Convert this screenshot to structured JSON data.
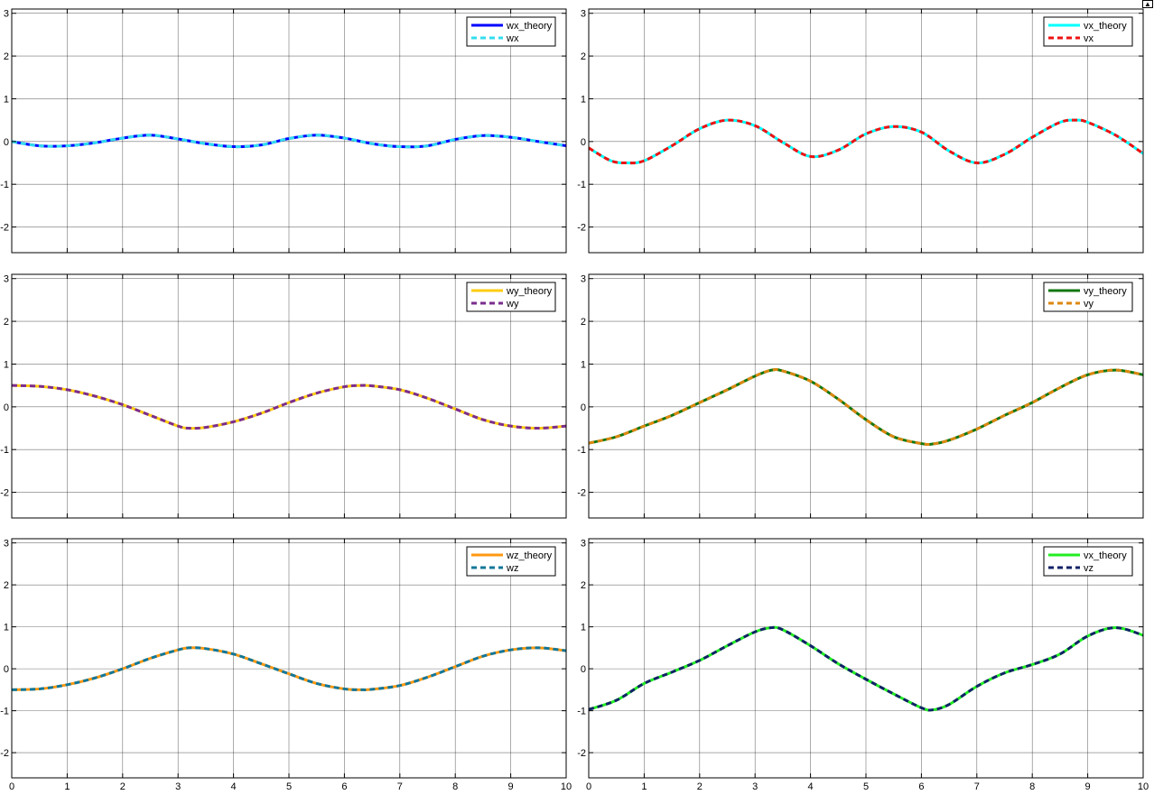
{
  "toolbar": {
    "undock_icon": "undock-icon"
  },
  "chart_data": [
    {
      "type": "line",
      "xlim": [
        0,
        10
      ],
      "ylim": [
        -2.6,
        3.1
      ],
      "xticks": [
        0,
        1,
        2,
        3,
        4,
        5,
        6,
        7,
        8,
        9,
        10
      ],
      "yticks": [
        -2,
        -1,
        0,
        1,
        2,
        3
      ],
      "x_tick_labels_shown": false,
      "grid": true,
      "legend_position": "top-right",
      "series": [
        {
          "name": "wx_theory",
          "color": "#0000ff",
          "style": "solid",
          "x": [
            0,
            0.5,
            1,
            1.5,
            2,
            2.5,
            3,
            3.5,
            4,
            4.5,
            5,
            5.5,
            6,
            6.5,
            7,
            7.5,
            8,
            8.5,
            9,
            9.5,
            10
          ],
          "y": [
            0,
            -0.1,
            -0.1,
            -0.03,
            0.08,
            0.15,
            0.06,
            -0.05,
            -0.12,
            -0.08,
            0.07,
            0.15,
            0.08,
            -0.05,
            -0.12,
            -0.1,
            0.05,
            0.14,
            0.1,
            0,
            -0.1
          ]
        },
        {
          "name": "wx",
          "color": "#33ddee",
          "style": "dashed",
          "x": [
            0,
            0.5,
            1,
            1.5,
            2,
            2.5,
            3,
            3.5,
            4,
            4.5,
            5,
            5.5,
            6,
            6.5,
            7,
            7.5,
            8,
            8.5,
            9,
            9.5,
            10
          ],
          "y": [
            0,
            -0.1,
            -0.1,
            -0.03,
            0.08,
            0.15,
            0.06,
            -0.05,
            -0.12,
            -0.08,
            0.07,
            0.15,
            0.08,
            -0.05,
            -0.12,
            -0.1,
            0.05,
            0.14,
            0.1,
            0,
            -0.1
          ]
        }
      ]
    },
    {
      "type": "line",
      "xlim": [
        0,
        10
      ],
      "ylim": [
        -2.6,
        3.1
      ],
      "xticks": [
        0,
        1,
        2,
        3,
        4,
        5,
        6,
        7,
        8,
        9,
        10
      ],
      "yticks": [
        -2,
        -1,
        0,
        1,
        2,
        3
      ],
      "x_tick_labels_shown": false,
      "grid": true,
      "legend_position": "top-right",
      "series": [
        {
          "name": "vx_theory",
          "color": "#00ffff",
          "style": "solid",
          "x": [
            0,
            0.4,
            0.7,
            1,
            1.5,
            2,
            2.5,
            3,
            3.5,
            4,
            4.5,
            5,
            5.5,
            6,
            6.5,
            7,
            7.5,
            8,
            8.5,
            8.8,
            9,
            9.5,
            10
          ],
          "y": [
            -0.15,
            -0.45,
            -0.5,
            -0.45,
            -0.1,
            0.3,
            0.5,
            0.37,
            -0.02,
            -0.35,
            -0.2,
            0.18,
            0.35,
            0.22,
            -0.22,
            -0.5,
            -0.3,
            0.1,
            0.45,
            0.5,
            0.45,
            0.15,
            -0.28
          ]
        },
        {
          "name": "vx",
          "color": "#ee1111",
          "style": "dashed",
          "x": [
            0,
            0.4,
            0.7,
            1,
            1.5,
            2,
            2.5,
            3,
            3.5,
            4,
            4.5,
            5,
            5.5,
            6,
            6.5,
            7,
            7.5,
            8,
            8.5,
            8.8,
            9,
            9.5,
            10
          ],
          "y": [
            -0.15,
            -0.45,
            -0.5,
            -0.45,
            -0.1,
            0.3,
            0.5,
            0.37,
            -0.02,
            -0.35,
            -0.2,
            0.18,
            0.35,
            0.22,
            -0.22,
            -0.5,
            -0.3,
            0.1,
            0.45,
            0.5,
            0.45,
            0.15,
            -0.28
          ]
        }
      ]
    },
    {
      "type": "line",
      "xlim": [
        0,
        10
      ],
      "ylim": [
        -2.6,
        3.1
      ],
      "xticks": [
        0,
        1,
        2,
        3,
        4,
        5,
        6,
        7,
        8,
        9,
        10
      ],
      "yticks": [
        -2,
        -1,
        0,
        1,
        2,
        3
      ],
      "x_tick_labels_shown": false,
      "grid": true,
      "legend_position": "top-right",
      "series": [
        {
          "name": "wy_theory",
          "color": "#ffcc11",
          "style": "solid",
          "x": [
            0,
            0.5,
            1,
            1.5,
            2,
            2.5,
            3,
            3.2,
            3.5,
            4,
            4.5,
            5,
            5.5,
            6,
            6.3,
            6.5,
            7,
            7.5,
            8,
            8.5,
            9,
            9.5,
            10
          ],
          "y": [
            0.5,
            0.48,
            0.4,
            0.25,
            0.05,
            -0.2,
            -0.45,
            -0.5,
            -0.48,
            -0.35,
            -0.15,
            0.1,
            0.32,
            0.47,
            0.5,
            0.49,
            0.4,
            0.2,
            -0.05,
            -0.3,
            -0.45,
            -0.5,
            -0.45
          ]
        },
        {
          "name": "wy",
          "color": "#7b2d8e",
          "style": "dashed",
          "x": [
            0,
            0.5,
            1,
            1.5,
            2,
            2.5,
            3,
            3.2,
            3.5,
            4,
            4.5,
            5,
            5.5,
            6,
            6.3,
            6.5,
            7,
            7.5,
            8,
            8.5,
            9,
            9.5,
            10
          ],
          "y": [
            0.5,
            0.48,
            0.4,
            0.25,
            0.05,
            -0.2,
            -0.45,
            -0.5,
            -0.48,
            -0.35,
            -0.15,
            0.1,
            0.32,
            0.47,
            0.5,
            0.49,
            0.4,
            0.2,
            -0.05,
            -0.3,
            -0.45,
            -0.5,
            -0.45
          ]
        }
      ]
    },
    {
      "type": "line",
      "xlim": [
        0,
        10
      ],
      "ylim": [
        -2.6,
        3.1
      ],
      "xticks": [
        0,
        1,
        2,
        3,
        4,
        5,
        6,
        7,
        8,
        9,
        10
      ],
      "yticks": [
        -2,
        -1,
        0,
        1,
        2,
        3
      ],
      "x_tick_labels_shown": false,
      "grid": true,
      "legend_position": "top-right",
      "series": [
        {
          "name": "vy_theory",
          "color": "#117711",
          "style": "solid",
          "x": [
            0,
            0.5,
            1,
            1.5,
            2,
            2.5,
            3,
            3.3,
            3.5,
            4,
            4.5,
            5,
            5.5,
            6,
            6.2,
            6.5,
            7,
            7.5,
            8,
            8.5,
            9,
            9.5,
            10
          ],
          "y": [
            -0.85,
            -0.7,
            -0.45,
            -0.2,
            0.1,
            0.4,
            0.72,
            0.86,
            0.84,
            0.6,
            0.18,
            -0.3,
            -0.7,
            -0.86,
            -0.87,
            -0.78,
            -0.52,
            -0.2,
            0.1,
            0.45,
            0.75,
            0.86,
            0.75
          ]
        },
        {
          "name": "vy",
          "color": "#dd8811",
          "style": "dashed",
          "x": [
            0,
            0.5,
            1,
            1.5,
            2,
            2.5,
            3,
            3.3,
            3.5,
            4,
            4.5,
            5,
            5.5,
            6,
            6.2,
            6.5,
            7,
            7.5,
            8,
            8.5,
            9,
            9.5,
            10
          ],
          "y": [
            -0.85,
            -0.7,
            -0.45,
            -0.2,
            0.1,
            0.4,
            0.72,
            0.86,
            0.84,
            0.6,
            0.18,
            -0.3,
            -0.7,
            -0.86,
            -0.87,
            -0.78,
            -0.52,
            -0.2,
            0.1,
            0.45,
            0.75,
            0.86,
            0.75
          ]
        }
      ]
    },
    {
      "type": "line",
      "xlim": [
        0,
        10
      ],
      "ylim": [
        -2.6,
        3.1
      ],
      "xticks": [
        0,
        1,
        2,
        3,
        4,
        5,
        6,
        7,
        8,
        9,
        10
      ],
      "yticks": [
        -2,
        -1,
        0,
        1,
        2,
        3
      ],
      "x_tick_labels_shown": true,
      "grid": true,
      "legend_position": "top-right",
      "series": [
        {
          "name": "wz_theory",
          "color": "#ff9911",
          "style": "solid",
          "x": [
            0,
            0.5,
            1,
            1.5,
            2,
            2.5,
            3,
            3.2,
            3.5,
            4,
            4.5,
            5,
            5.5,
            6,
            6.3,
            6.5,
            7,
            7.5,
            8,
            8.5,
            9,
            9.5,
            10
          ],
          "y": [
            -0.5,
            -0.48,
            -0.38,
            -0.22,
            0,
            0.25,
            0.45,
            0.5,
            0.48,
            0.35,
            0.12,
            -0.12,
            -0.35,
            -0.48,
            -0.5,
            -0.49,
            -0.4,
            -0.2,
            0.05,
            0.3,
            0.45,
            0.5,
            0.43
          ]
        },
        {
          "name": "wz",
          "color": "#117799",
          "style": "dashed",
          "x": [
            0,
            0.5,
            1,
            1.5,
            2,
            2.5,
            3,
            3.2,
            3.5,
            4,
            4.5,
            5,
            5.5,
            6,
            6.3,
            6.5,
            7,
            7.5,
            8,
            8.5,
            9,
            9.5,
            10
          ],
          "y": [
            -0.5,
            -0.48,
            -0.38,
            -0.22,
            0,
            0.25,
            0.45,
            0.5,
            0.48,
            0.35,
            0.12,
            -0.12,
            -0.35,
            -0.48,
            -0.5,
            -0.49,
            -0.4,
            -0.2,
            0.05,
            0.3,
            0.45,
            0.5,
            0.43
          ]
        }
      ]
    },
    {
      "type": "line",
      "xlim": [
        0,
        10
      ],
      "ylim": [
        -2.6,
        3.1
      ],
      "xticks": [
        0,
        1,
        2,
        3,
        4,
        5,
        6,
        7,
        8,
        9,
        10
      ],
      "yticks": [
        -2,
        -1,
        0,
        1,
        2,
        3
      ],
      "x_tick_labels_shown": true,
      "grid": true,
      "legend_position": "top-right",
      "series": [
        {
          "name": "vx_theory",
          "color": "#22ee22",
          "style": "solid",
          "x": [
            0,
            0.5,
            1,
            1.5,
            2,
            2.5,
            3,
            3.3,
            3.5,
            4,
            4.5,
            5,
            5.5,
            6,
            6.2,
            6.5,
            7,
            7.5,
            8,
            8.5,
            9,
            9.5,
            10
          ],
          "y": [
            -0.97,
            -0.75,
            -0.35,
            -0.08,
            0.2,
            0.55,
            0.88,
            0.98,
            0.93,
            0.55,
            0.12,
            -0.25,
            -0.6,
            -0.93,
            -0.98,
            -0.85,
            -0.42,
            -0.1,
            0.1,
            0.35,
            0.78,
            0.98,
            0.8
          ]
        },
        {
          "name": "vz",
          "color": "#112266",
          "style": "dashed",
          "x": [
            0,
            0.5,
            1,
            1.5,
            2,
            2.5,
            3,
            3.3,
            3.5,
            4,
            4.5,
            5,
            5.5,
            6,
            6.2,
            6.5,
            7,
            7.5,
            8,
            8.5,
            9,
            9.5,
            10
          ],
          "y": [
            -0.97,
            -0.75,
            -0.35,
            -0.08,
            0.2,
            0.55,
            0.88,
            0.98,
            0.93,
            0.55,
            0.12,
            -0.25,
            -0.6,
            -0.93,
            -0.98,
            -0.85,
            -0.42,
            -0.1,
            0.1,
            0.35,
            0.78,
            0.98,
            0.8
          ]
        }
      ]
    }
  ]
}
